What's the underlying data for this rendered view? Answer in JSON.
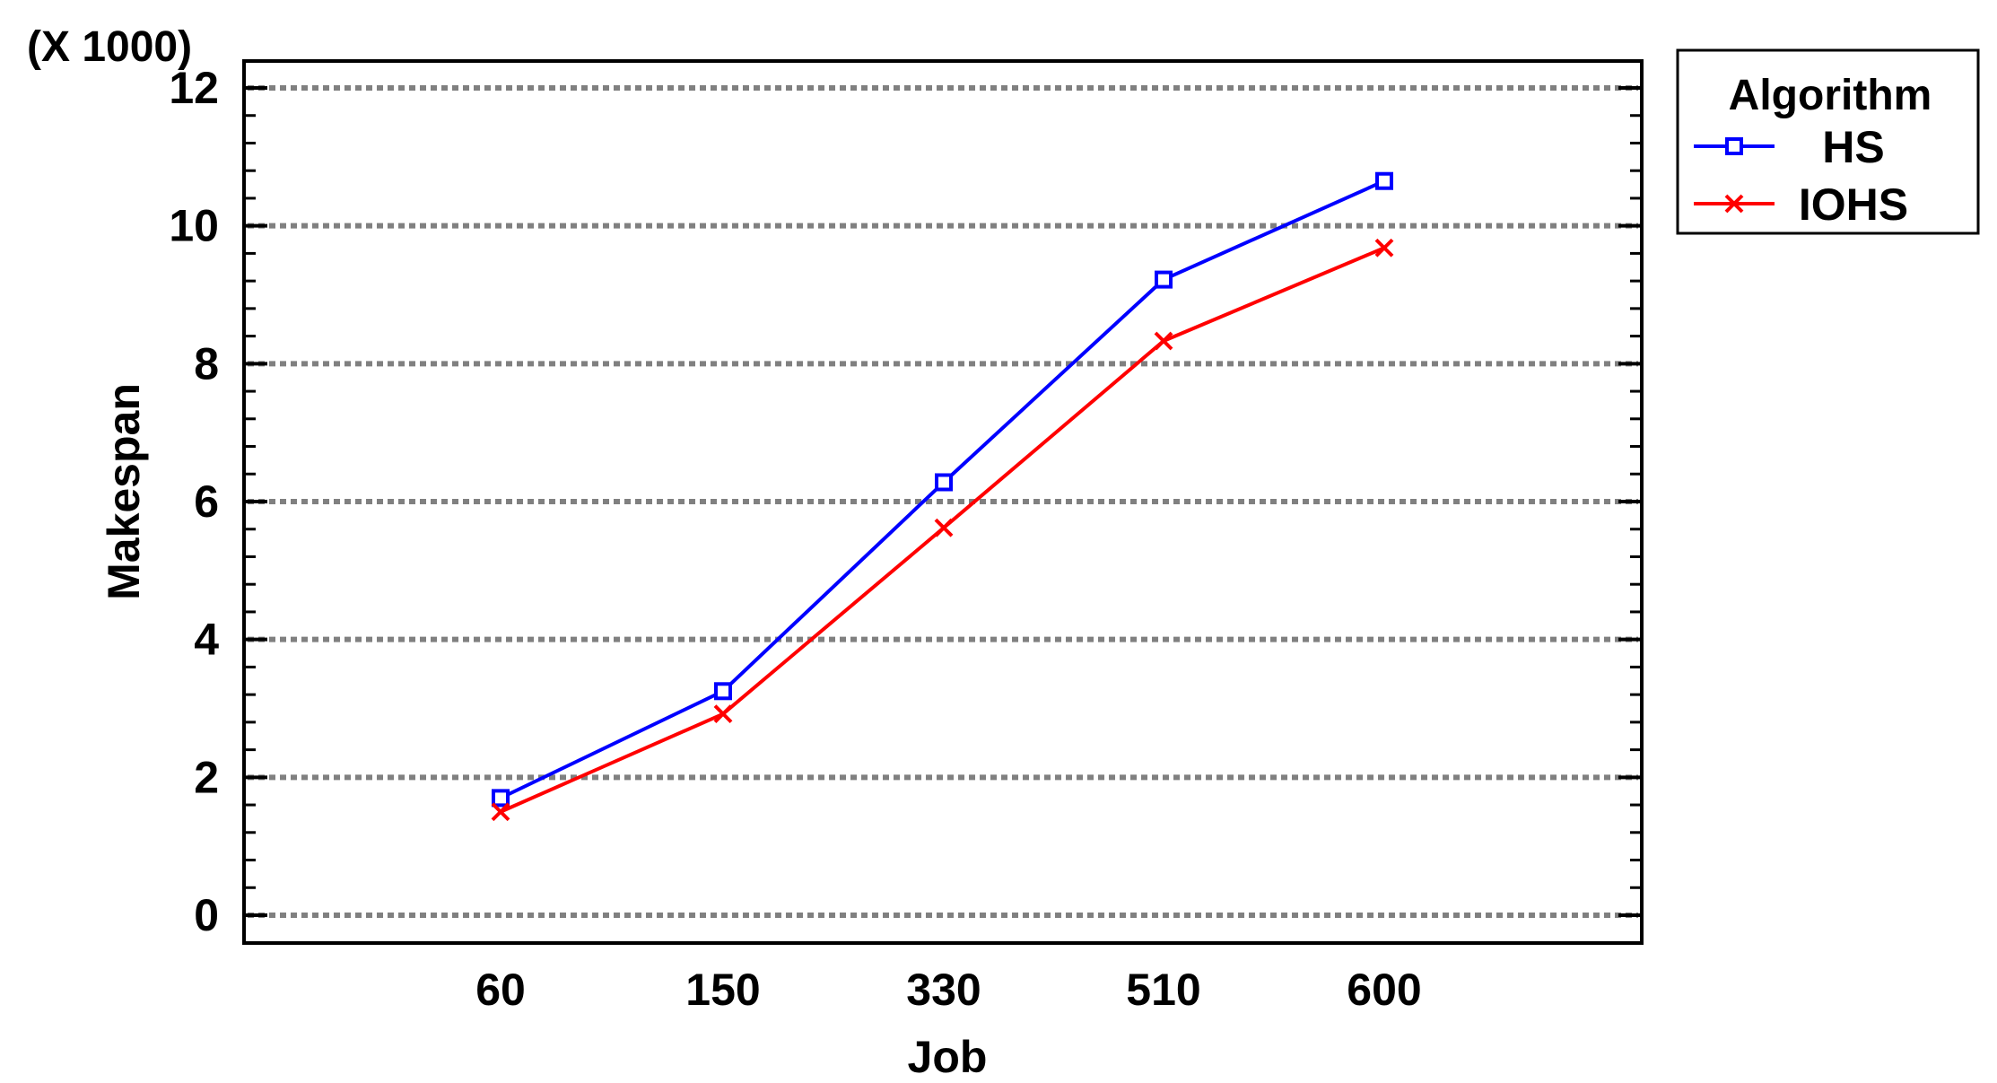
{
  "chart_data": {
    "type": "line",
    "title": "",
    "xlabel": "Job",
    "ylabel": "Makespan",
    "y_multiplier_label": "(X 1000)",
    "categories": [
      "60",
      "150",
      "330",
      "510",
      "600"
    ],
    "ylim": [
      0,
      12
    ],
    "yticks": [
      "0",
      "2",
      "4",
      "6",
      "8",
      "10",
      "12"
    ],
    "grid": true,
    "legend_placement": "outside-right-top",
    "legend_title": "Algorithm",
    "series": [
      {
        "name": "HS",
        "values": [
          1.7,
          3.25,
          6.28,
          9.22,
          10.65
        ],
        "color": "#0000ff",
        "marker": "square"
      },
      {
        "name": "IOHS",
        "values": [
          1.5,
          2.92,
          5.62,
          8.33,
          9.68
        ],
        "color": "#ff0000",
        "marker": "x"
      }
    ]
  }
}
